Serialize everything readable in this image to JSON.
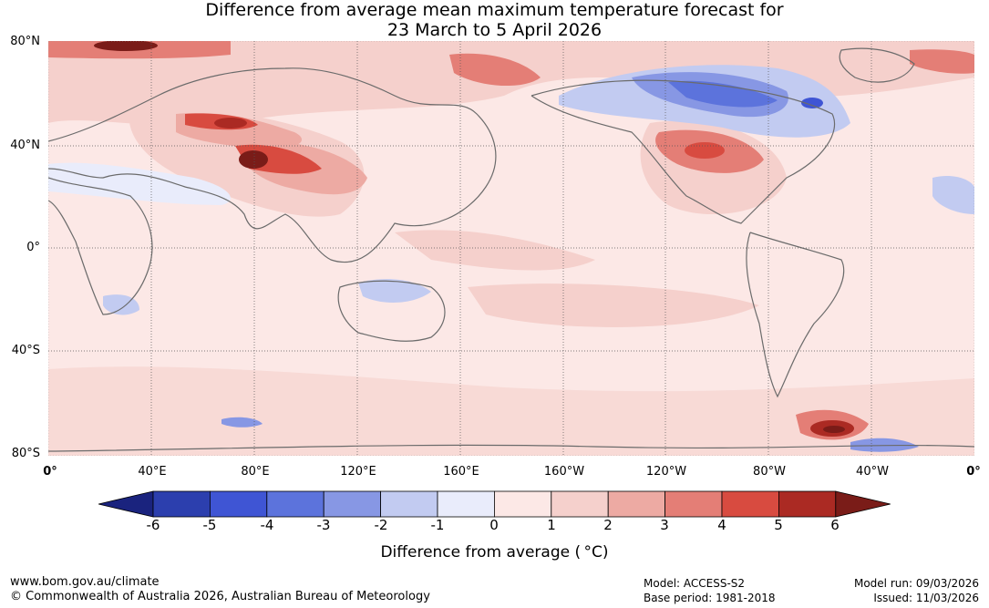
{
  "title_line1": "Difference from average mean maximum temperature forecast for",
  "title_line2": "23 March to 5 April 2026",
  "lat_labels": [
    "80°N",
    "40°N",
    "0°",
    "40°S",
    "80°S"
  ],
  "lon_labels": [
    "0°",
    "40°E",
    "80°E",
    "120°E",
    "160°E",
    "160°W",
    "120°W",
    "80°W",
    "40°W",
    "0°"
  ],
  "colorbar": {
    "ticks": [
      "-6",
      "-5",
      "-4",
      "-3",
      "-2",
      "-1",
      "0",
      "1",
      "2",
      "3",
      "4",
      "5",
      "6"
    ],
    "colors": [
      "#1a237e",
      "#2c3fae",
      "#3f55d4",
      "#5c73dc",
      "#8797e4",
      "#c2cbf1",
      "#e9ecfb",
      "#fce8e6",
      "#f5d0cc",
      "#edaaa3",
      "#e47e76",
      "#d84b40",
      "#ab2a23",
      "#7a1c18"
    ],
    "label": "Difference from average ( °C)"
  },
  "footer": {
    "website": "www.bom.gov.au/climate",
    "copyright": "© Commonwealth of Australia 2026, Australian Bureau of Meteorology",
    "model": "Model: ACCESS-S2",
    "base_period": "Base period: 1981-2018",
    "model_run": "Model run: 09/03/2026",
    "issued": "Issued: 11/03/2026"
  }
}
